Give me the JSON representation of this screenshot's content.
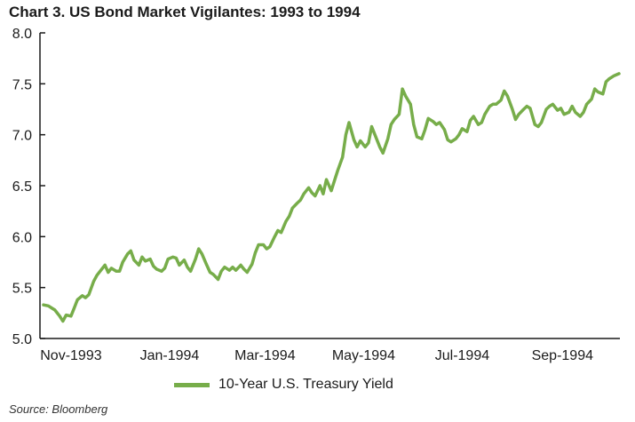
{
  "chart_data": {
    "type": "line",
    "title": "Chart 3. US Bond Market Vigilantes: 1993 to 1994",
    "source": "Source: Bloomberg",
    "xlabel": "",
    "ylabel": "",
    "ylim": [
      5.0,
      8.0
    ],
    "yticks": [
      "5.0",
      "5.5",
      "6.0",
      "6.5",
      "7.0",
      "7.5",
      "8.0"
    ],
    "xlim": [
      "1993-10-15",
      "1994-09-30"
    ],
    "xticks": [
      {
        "date": "1993-11-01",
        "label": "Nov-1993"
      },
      {
        "date": "1994-01-01",
        "label": "Jan-1994"
      },
      {
        "date": "1994-03-01",
        "label": "Mar-1994"
      },
      {
        "date": "1994-05-01",
        "label": "May-1994"
      },
      {
        "date": "1994-07-01",
        "label": "Jul-1994"
      },
      {
        "date": "1994-09-01",
        "label": "Sep-1994"
      }
    ],
    "grid": false,
    "legend_position": "bottom-center",
    "series": [
      {
        "name": "10-Year U.S. Treasury Yield",
        "color": "#77ad4a",
        "points": [
          [
            "1993-10-15",
            5.33
          ],
          [
            "1993-10-18",
            5.32
          ],
          [
            "1993-10-20",
            5.3
          ],
          [
            "1993-10-22",
            5.28
          ],
          [
            "1993-10-25",
            5.22
          ],
          [
            "1993-10-27",
            5.17
          ],
          [
            "1993-10-29",
            5.23
          ],
          [
            "1993-11-01",
            5.22
          ],
          [
            "1993-11-03",
            5.3
          ],
          [
            "1993-11-05",
            5.38
          ],
          [
            "1993-11-08",
            5.42
          ],
          [
            "1993-11-10",
            5.4
          ],
          [
            "1993-11-12",
            5.43
          ],
          [
            "1993-11-15",
            5.56
          ],
          [
            "1993-11-17",
            5.62
          ],
          [
            "1993-11-19",
            5.66
          ],
          [
            "1993-11-22",
            5.72
          ],
          [
            "1993-11-24",
            5.65
          ],
          [
            "1993-11-26",
            5.69
          ],
          [
            "1993-11-29",
            5.66
          ],
          [
            "1993-12-01",
            5.66
          ],
          [
            "1993-12-03",
            5.75
          ],
          [
            "1993-12-06",
            5.83
          ],
          [
            "1993-12-08",
            5.86
          ],
          [
            "1993-12-10",
            5.77
          ],
          [
            "1993-12-13",
            5.72
          ],
          [
            "1993-12-15",
            5.8
          ],
          [
            "1993-12-17",
            5.76
          ],
          [
            "1993-12-20",
            5.78
          ],
          [
            "1993-12-22",
            5.71
          ],
          [
            "1993-12-24",
            5.68
          ],
          [
            "1993-12-27",
            5.66
          ],
          [
            "1993-12-29",
            5.69
          ],
          [
            "1993-12-31",
            5.78
          ],
          [
            "1994-01-03",
            5.8
          ],
          [
            "1994-01-05",
            5.79
          ],
          [
            "1994-01-07",
            5.72
          ],
          [
            "1994-01-10",
            5.77
          ],
          [
            "1994-01-12",
            5.7
          ],
          [
            "1994-01-14",
            5.66
          ],
          [
            "1994-01-17",
            5.78
          ],
          [
            "1994-01-19",
            5.88
          ],
          [
            "1994-01-21",
            5.83
          ],
          [
            "1994-01-24",
            5.72
          ],
          [
            "1994-01-26",
            5.65
          ],
          [
            "1994-01-28",
            5.63
          ],
          [
            "1994-01-31",
            5.58
          ],
          [
            "1994-02-02",
            5.66
          ],
          [
            "1994-02-04",
            5.7
          ],
          [
            "1994-02-07",
            5.67
          ],
          [
            "1994-02-09",
            5.7
          ],
          [
            "1994-02-11",
            5.67
          ],
          [
            "1994-02-14",
            5.72
          ],
          [
            "1994-02-16",
            5.68
          ],
          [
            "1994-02-18",
            5.65
          ],
          [
            "1994-02-21",
            5.73
          ],
          [
            "1994-02-23",
            5.84
          ],
          [
            "1994-02-25",
            5.92
          ],
          [
            "1994-02-28",
            5.92
          ],
          [
            "1994-03-02",
            5.88
          ],
          [
            "1994-03-04",
            5.9
          ],
          [
            "1994-03-07",
            6.0
          ],
          [
            "1994-03-09",
            6.06
          ],
          [
            "1994-03-11",
            6.04
          ],
          [
            "1994-03-14",
            6.15
          ],
          [
            "1994-03-16",
            6.2
          ],
          [
            "1994-03-18",
            6.28
          ],
          [
            "1994-03-21",
            6.33
          ],
          [
            "1994-03-23",
            6.36
          ],
          [
            "1994-03-25",
            6.42
          ],
          [
            "1994-03-28",
            6.48
          ],
          [
            "1994-03-30",
            6.43
          ],
          [
            "1994-04-01",
            6.4
          ],
          [
            "1994-04-04",
            6.5
          ],
          [
            "1994-04-06",
            6.42
          ],
          [
            "1994-04-08",
            6.56
          ],
          [
            "1994-04-11",
            6.45
          ],
          [
            "1994-04-13",
            6.55
          ],
          [
            "1994-04-15",
            6.65
          ],
          [
            "1994-04-18",
            6.78
          ],
          [
            "1994-04-20",
            7.0
          ],
          [
            "1994-04-22",
            7.12
          ],
          [
            "1994-04-25",
            6.95
          ],
          [
            "1994-04-27",
            6.88
          ],
          [
            "1994-04-29",
            6.94
          ],
          [
            "1994-05-02",
            6.88
          ],
          [
            "1994-05-04",
            6.92
          ],
          [
            "1994-05-06",
            7.08
          ],
          [
            "1994-05-09",
            6.96
          ],
          [
            "1994-05-11",
            6.88
          ],
          [
            "1994-05-13",
            6.82
          ],
          [
            "1994-05-16",
            6.96
          ],
          [
            "1994-05-18",
            7.1
          ],
          [
            "1994-05-20",
            7.15
          ],
          [
            "1994-05-23",
            7.2
          ],
          [
            "1994-05-25",
            7.45
          ],
          [
            "1994-05-27",
            7.38
          ],
          [
            "1994-05-30",
            7.3
          ],
          [
            "1994-06-01",
            7.1
          ],
          [
            "1994-06-03",
            6.98
          ],
          [
            "1994-06-06",
            6.96
          ],
          [
            "1994-06-08",
            7.05
          ],
          [
            "1994-06-10",
            7.16
          ],
          [
            "1994-06-13",
            7.13
          ],
          [
            "1994-06-15",
            7.1
          ],
          [
            "1994-06-17",
            7.12
          ],
          [
            "1994-06-20",
            7.05
          ],
          [
            "1994-06-22",
            6.95
          ],
          [
            "1994-06-24",
            6.93
          ],
          [
            "1994-06-27",
            6.96
          ],
          [
            "1994-06-29",
            7.0
          ],
          [
            "1994-07-01",
            7.06
          ],
          [
            "1994-07-04",
            7.03
          ],
          [
            "1994-07-06",
            7.14
          ],
          [
            "1994-07-08",
            7.18
          ],
          [
            "1994-07-11",
            7.1
          ],
          [
            "1994-07-13",
            7.12
          ],
          [
            "1994-07-15",
            7.2
          ],
          [
            "1994-07-18",
            7.28
          ],
          [
            "1994-07-20",
            7.3
          ],
          [
            "1994-07-22",
            7.3
          ],
          [
            "1994-07-25",
            7.34
          ],
          [
            "1994-07-27",
            7.43
          ],
          [
            "1994-07-29",
            7.38
          ],
          [
            "1994-08-01",
            7.25
          ],
          [
            "1994-08-03",
            7.15
          ],
          [
            "1994-08-05",
            7.2
          ],
          [
            "1994-08-08",
            7.25
          ],
          [
            "1994-08-10",
            7.28
          ],
          [
            "1994-08-12",
            7.26
          ],
          [
            "1994-08-15",
            7.1
          ],
          [
            "1994-08-17",
            7.08
          ],
          [
            "1994-08-19",
            7.12
          ],
          [
            "1994-08-22",
            7.25
          ],
          [
            "1994-08-24",
            7.28
          ],
          [
            "1994-08-26",
            7.3
          ],
          [
            "1994-08-29",
            7.24
          ],
          [
            "1994-08-31",
            7.26
          ],
          [
            "1994-09-02",
            7.2
          ],
          [
            "1994-09-05",
            7.22
          ],
          [
            "1994-09-07",
            7.28
          ],
          [
            "1994-09-09",
            7.22
          ],
          [
            "1994-09-12",
            7.18
          ],
          [
            "1994-09-14",
            7.22
          ],
          [
            "1994-09-16",
            7.3
          ],
          [
            "1994-09-19",
            7.35
          ],
          [
            "1994-09-21",
            7.45
          ],
          [
            "1994-09-23",
            7.42
          ],
          [
            "1994-09-26",
            7.4
          ],
          [
            "1994-09-28",
            7.52
          ],
          [
            "1994-09-30",
            7.55
          ],
          [
            "1994-10-03",
            7.58
          ],
          [
            "1994-10-06",
            7.6
          ]
        ]
      }
    ]
  }
}
